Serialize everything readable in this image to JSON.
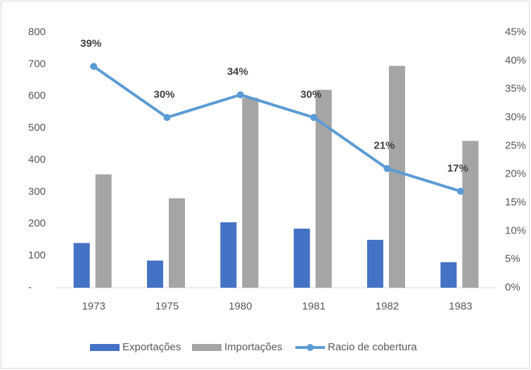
{
  "chart_data": {
    "type": "bar",
    "categories": [
      "1973",
      "1975",
      "1980",
      "1981",
      "1982",
      "1983"
    ],
    "series": [
      {
        "name": "Exportações",
        "color": "#4472c4",
        "values": [
          140,
          85,
          205,
          185,
          150,
          80
        ]
      },
      {
        "name": "Importações",
        "color": "#a5a5a5",
        "values": [
          355,
          280,
          595,
          620,
          695,
          460
        ]
      },
      {
        "name": "Racio de cobertura",
        "color": "#5b9bd5",
        "type": "line",
        "axis": "y2",
        "values": [
          39,
          30,
          34,
          30,
          21,
          17
        ],
        "value_labels": [
          "39%",
          "30%",
          "34%",
          "30%",
          "21%",
          "17%"
        ]
      }
    ],
    "ylim": [
      0,
      800
    ],
    "yticks": [
      {
        "value": 0,
        "label": "-"
      },
      100,
      200,
      300,
      400,
      500,
      600,
      700,
      800
    ],
    "y2lim": [
      0,
      45
    ],
    "y2ticks": [
      {
        "value": 0,
        "label": "0%"
      },
      {
        "value": 5,
        "label": "5%"
      },
      {
        "value": 10,
        "label": "10%"
      },
      {
        "value": 15,
        "label": "15%"
      },
      {
        "value": 20,
        "label": "20%"
      },
      {
        "value": 25,
        "label": "25%"
      },
      {
        "value": 30,
        "label": "30%"
      },
      {
        "value": 35,
        "label": "35%"
      },
      {
        "value": 40,
        "label": "40%"
      },
      {
        "value": 45,
        "label": "45%"
      }
    ],
    "legend": "bottom",
    "grid": false
  }
}
